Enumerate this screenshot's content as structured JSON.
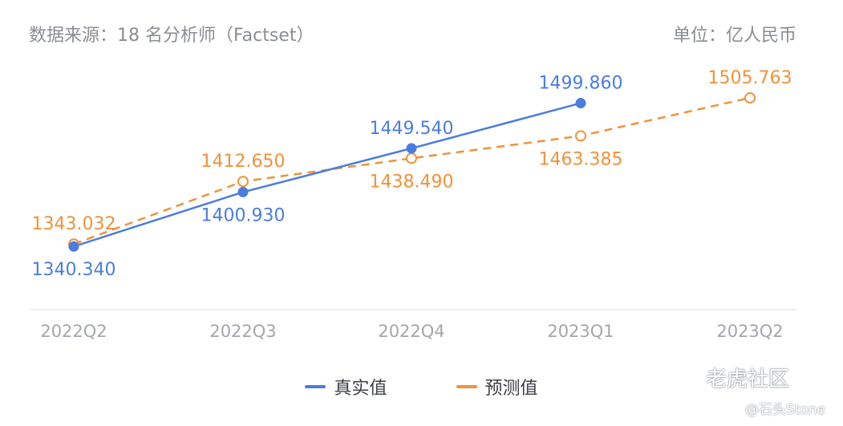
{
  "header": {
    "source": "数据来源：18 名分析师（Factset）",
    "unit": "单位：亿人民币"
  },
  "chart_data": {
    "type": "line",
    "categories": [
      "2022Q2",
      "2022Q3",
      "2022Q4",
      "2023Q1",
      "2023Q2"
    ],
    "series": [
      {
        "name": "真实值",
        "color": "#4a7ddf",
        "style": "solid",
        "marker": "filled",
        "values": [
          1340.34,
          1400.93,
          1449.54,
          1499.86,
          null
        ],
        "labels": [
          "1340.340",
          "1400.930",
          "1449.540",
          "1499.860",
          null
        ],
        "label_pos": [
          "below",
          "below",
          "above",
          "above",
          null
        ]
      },
      {
        "name": "预测值",
        "color": "#f0923a",
        "style": "dashed",
        "marker": "hollow",
        "values": [
          1343.032,
          1412.65,
          1438.49,
          1463.385,
          1505.763
        ],
        "labels": [
          "1343.032",
          "1412.650",
          "1438.490",
          "1463.385",
          "1505.763"
        ],
        "label_pos": [
          "above",
          "above",
          "below",
          "below",
          "above"
        ]
      }
    ],
    "ylim": [
      1270,
      1570
    ],
    "grid": false,
    "legend_position": "bottom-center"
  },
  "watermark": {
    "brand": "老虎社区",
    "author": "@石头Stone"
  }
}
